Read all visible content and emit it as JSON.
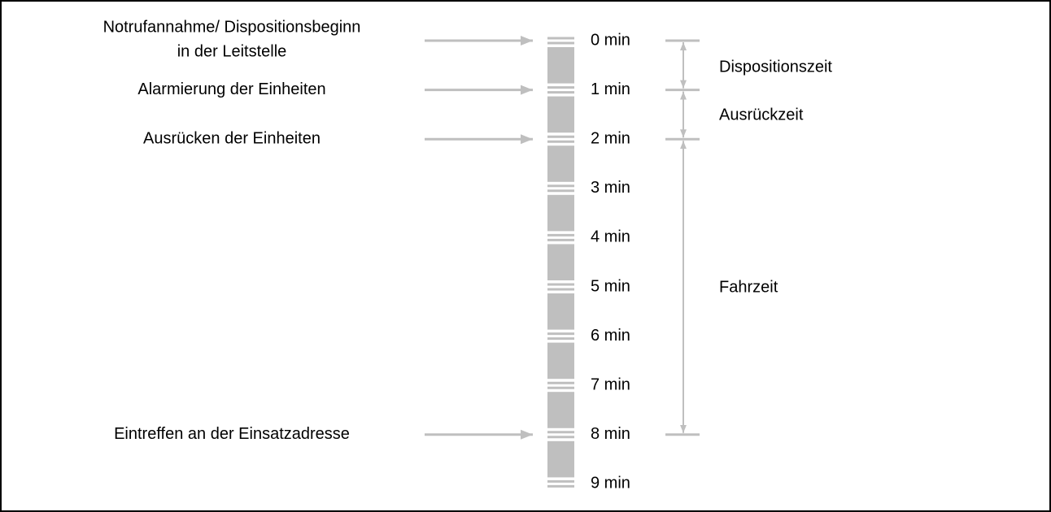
{
  "events": [
    {
      "lines": [
        "Notrufannahme/ Dispositionsbeginn",
        "in der Leitstelle"
      ]
    },
    {
      "lines": [
        "Alarmierung der Einheiten"
      ]
    },
    {
      "lines": [
        "Ausrücken der Einheiten"
      ]
    },
    {
      "lines": [
        "Eintreffen an der Einsatzadresse"
      ]
    }
  ],
  "timeline": [
    "0 min",
    "1 min",
    "2 min",
    "3 min",
    "4 min",
    "5 min",
    "6 min",
    "7 min",
    "8 min",
    "9 min"
  ],
  "phases": [
    "Dispositionszeit",
    "Ausrückzeit",
    "Fahrzeit"
  ]
}
